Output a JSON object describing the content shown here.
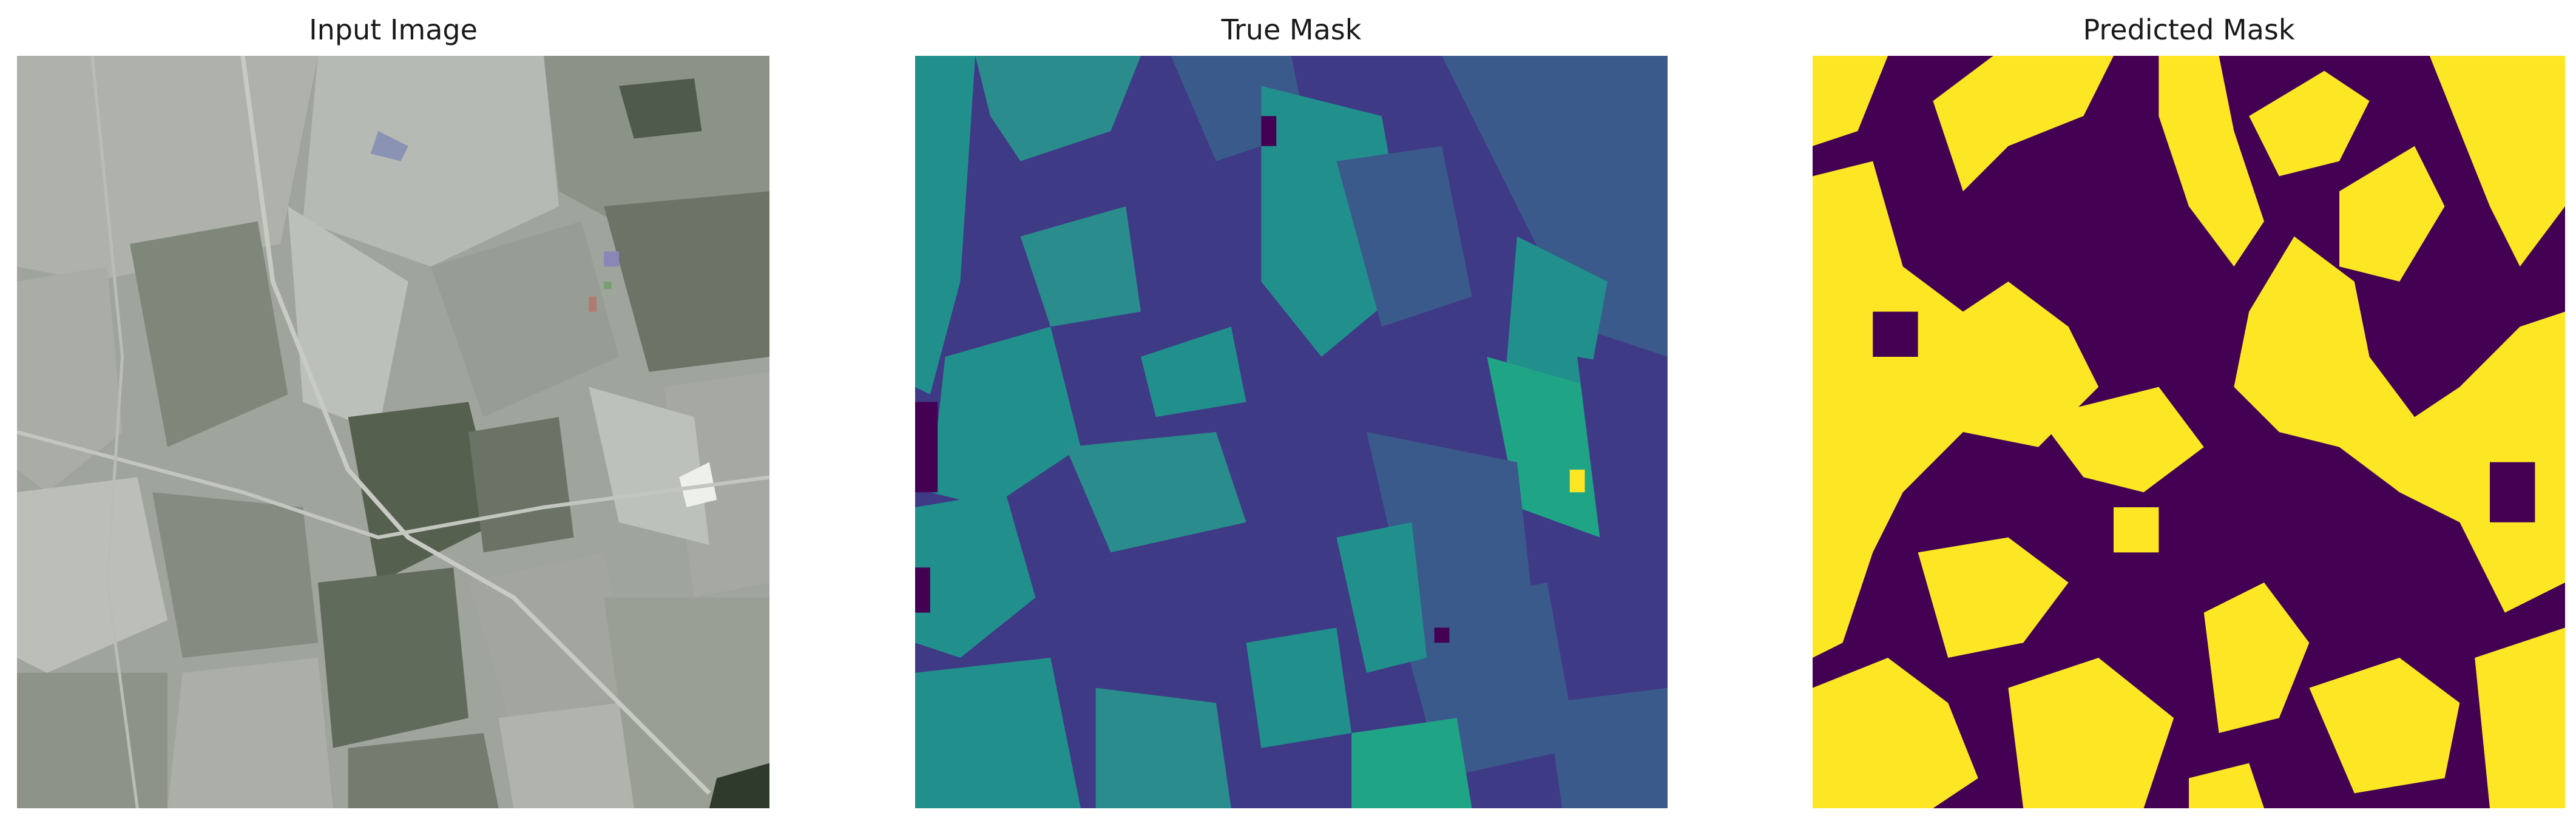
{
  "figure": {
    "panels": [
      {
        "title": "Input Image"
      },
      {
        "title": "True Mask"
      },
      {
        "title": "Predicted Mask"
      }
    ]
  },
  "colors": {
    "background": "#ffffff",
    "title_text": "#1a1a1a",
    "input_grey_light": "#b4b8b2",
    "input_grey_mid": "#8e938c",
    "input_grey_dark": "#5c6659",
    "mask_purple_dark": "#440154",
    "mask_indigo": "#3b2f7f",
    "mask_blue": "#3b5a8c",
    "mask_teal": "#21908d",
    "mask_green": "#20a486",
    "mask_yellow": "#fde725"
  }
}
